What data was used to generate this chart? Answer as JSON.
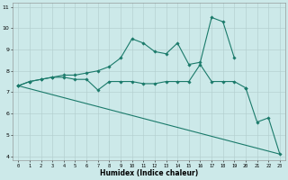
{
  "xlabel": "Humidex (Indice chaleur)",
  "bg_color": "#cce9e9",
  "line_color": "#1a7a6a",
  "x_values": [
    0,
    1,
    2,
    3,
    4,
    5,
    6,
    7,
    8,
    9,
    10,
    11,
    12,
    13,
    14,
    15,
    16,
    17,
    18,
    19,
    20,
    21,
    22,
    23
  ],
  "series1": [
    7.3,
    7.5,
    7.6,
    7.7,
    7.7,
    7.6,
    7.6,
    7.1,
    7.5,
    7.5,
    7.5,
    7.4,
    7.4,
    7.5,
    7.5,
    7.5,
    8.3,
    7.5,
    7.5,
    7.5,
    7.2,
    null,
    null,
    null
  ],
  "series2": [
    7.3,
    7.5,
    7.6,
    7.7,
    7.8,
    7.8,
    7.9,
    8.0,
    8.2,
    8.6,
    9.5,
    9.3,
    8.9,
    8.8,
    9.3,
    8.3,
    8.4,
    10.5,
    10.3,
    8.6,
    null,
    null,
    null,
    null
  ],
  "series3": [
    7.3,
    null,
    null,
    null,
    null,
    null,
    null,
    null,
    null,
    null,
    null,
    null,
    null,
    null,
    null,
    null,
    null,
    null,
    null,
    null,
    7.2,
    5.6,
    5.8,
    4.1
  ],
  "straight_line": [
    [
      0,
      7.3
    ],
    [
      23,
      4.1
    ]
  ],
  "ylim": [
    3.8,
    11.2
  ],
  "xlim": [
    -0.5,
    23.5
  ],
  "yticks": [
    4,
    5,
    6,
    7,
    8,
    9,
    10,
    11
  ],
  "xticks": [
    0,
    1,
    2,
    3,
    4,
    5,
    6,
    7,
    8,
    9,
    10,
    11,
    12,
    13,
    14,
    15,
    16,
    17,
    18,
    19,
    20,
    21,
    22,
    23
  ]
}
